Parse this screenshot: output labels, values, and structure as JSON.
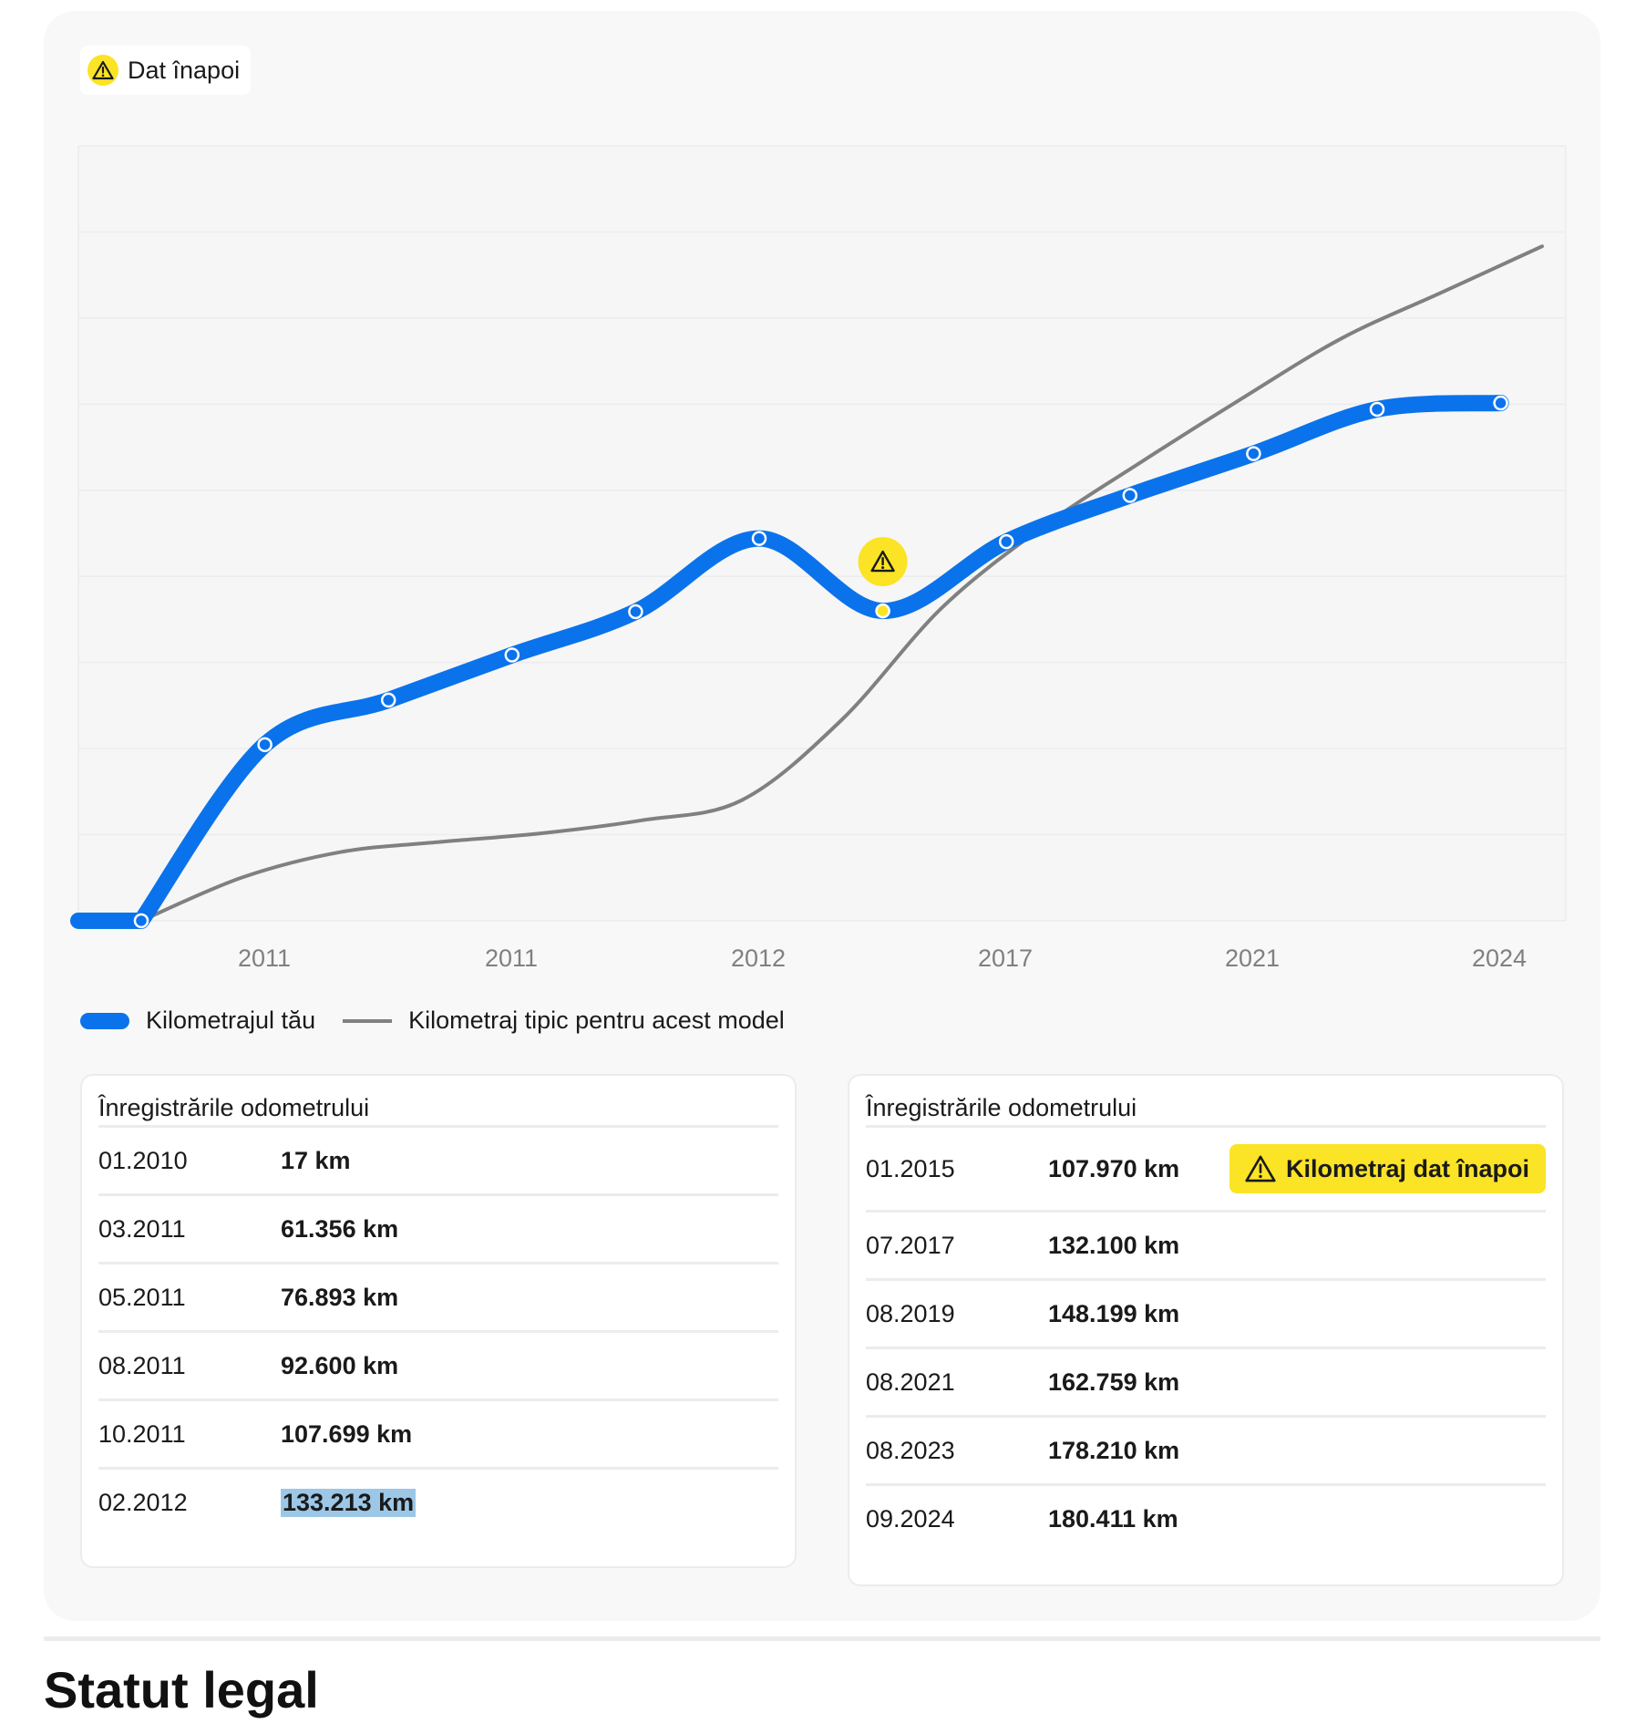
{
  "badge": {
    "label": "Dat înapoi",
    "icon": "warning-triangle-icon"
  },
  "colors": {
    "your_mileage": "#0a73ec",
    "typical": "#808080",
    "warning": "#fbe326"
  },
  "chart_data": {
    "type": "line",
    "x_tick_labels": [
      "2011",
      "2011",
      "2012",
      "2017",
      "2021",
      "2024"
    ],
    "grid": true,
    "legend_position": "bottom-left",
    "series": [
      {
        "name": "Kilometrajul tău",
        "points": [
          {
            "date": "01.2010",
            "km": 17
          },
          {
            "date": "03.2011",
            "km": 61356
          },
          {
            "date": "05.2011",
            "km": 76893
          },
          {
            "date": "08.2011",
            "km": 92600
          },
          {
            "date": "10.2011",
            "km": 107699
          },
          {
            "date": "02.2012",
            "km": 133213
          },
          {
            "date": "01.2015",
            "km": 107970,
            "warning": true
          },
          {
            "date": "07.2017",
            "km": 132100
          },
          {
            "date": "08.2019",
            "km": 148199
          },
          {
            "date": "08.2021",
            "km": 162759
          },
          {
            "date": "08.2023",
            "km": 178210
          },
          {
            "date": "09.2024",
            "km": 180411
          }
        ]
      },
      {
        "name": "Kilometraj tipic pentru acest model",
        "values": [
          17,
          15000,
          24000,
          27500,
          30500,
          35000,
          42000,
          70000,
          109000,
          137000,
          160000,
          182000,
          203000,
          219000,
          235000
        ]
      }
    ]
  },
  "legend": {
    "yours": "Kilometrajul tău",
    "typical": "Kilometraj tipic pentru acest model"
  },
  "table_left": {
    "title": "Înregistrările odometrului",
    "rows": [
      {
        "date": "01.2010",
        "km": "17 km"
      },
      {
        "date": "03.2011",
        "km": "61.356 km"
      },
      {
        "date": "05.2011",
        "km": "76.893 km"
      },
      {
        "date": "08.2011",
        "km": "92.600 km"
      },
      {
        "date": "10.2011",
        "km": "107.699 km"
      },
      {
        "date": "02.2012",
        "km": "133.213 km"
      }
    ]
  },
  "table_right": {
    "title": "Înregistrările odometrului",
    "rows": [
      {
        "date": "01.2015",
        "km": "107.970 km",
        "flag": "Kilometraj dat înapoi"
      },
      {
        "date": "07.2017",
        "km": "132.100 km"
      },
      {
        "date": "08.2019",
        "km": "148.199 km"
      },
      {
        "date": "08.2021",
        "km": "162.759 km"
      },
      {
        "date": "08.2023",
        "km": "178.210 km"
      },
      {
        "date": "09.2024",
        "km": "180.411 km"
      }
    ]
  },
  "section": {
    "title": "Statut legal"
  }
}
